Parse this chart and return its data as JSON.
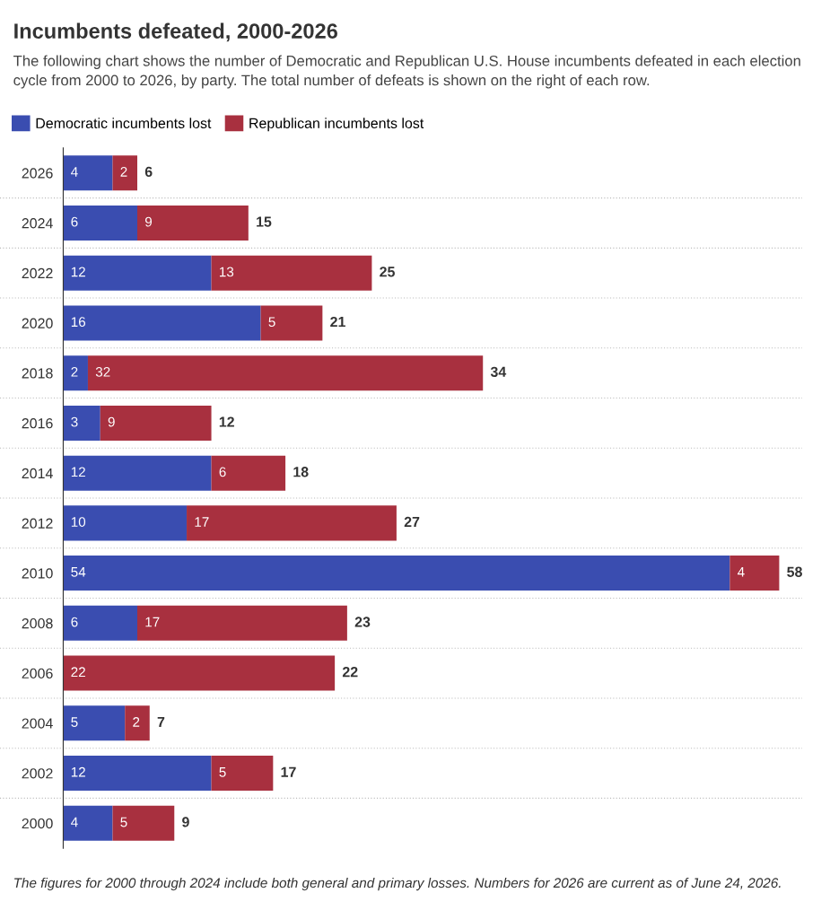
{
  "chart_data": {
    "type": "bar",
    "orientation": "horizontal",
    "stacked": true,
    "title": "Incumbents defeated, 2000-2026",
    "subtitle": "The following chart shows the number of Democratic and Republican U.S. House incumbents defeated in each election cycle from 2000 to 2026, by party. The total number of defeats is shown on the right of each row.",
    "categories": [
      "2026",
      "2024",
      "2022",
      "2020",
      "2018",
      "2016",
      "2014",
      "2012",
      "2010",
      "2008",
      "2006",
      "2004",
      "2002",
      "2000"
    ],
    "series": [
      {
        "name": "Democratic incumbents lost",
        "color": "#3a4db0",
        "values": [
          4,
          6,
          12,
          16,
          2,
          3,
          12,
          10,
          54,
          6,
          0,
          5,
          12,
          4
        ],
        "value_labels": [
          "4",
          "6",
          "12",
          "16",
          "2",
          "3",
          "12",
          "10",
          "54",
          "6",
          null,
          "5",
          "12",
          "4"
        ]
      },
      {
        "name": "Republican incumbents lost",
        "color": "#a8303f",
        "values": [
          2,
          9,
          13,
          5,
          32,
          9,
          6,
          17,
          4,
          17,
          22,
          2,
          5,
          5
        ],
        "value_labels": [
          "2",
          "9",
          "13",
          "5",
          "32",
          "9",
          "6",
          "17",
          "4",
          "17",
          "22",
          "2",
          "5",
          "5"
        ]
      }
    ],
    "totals": [
      "6",
      "15",
      "25",
      "21",
      "34",
      "12",
      "18",
      "27",
      "58",
      "23",
      "22",
      "7",
      "17",
      "9"
    ],
    "grid": "y",
    "legend": "top left",
    "annotations": [
      "The figures for 2000 through 2024 include both general and primary losses. Numbers for 2026 are current as of June 24, 2026."
    ]
  }
}
